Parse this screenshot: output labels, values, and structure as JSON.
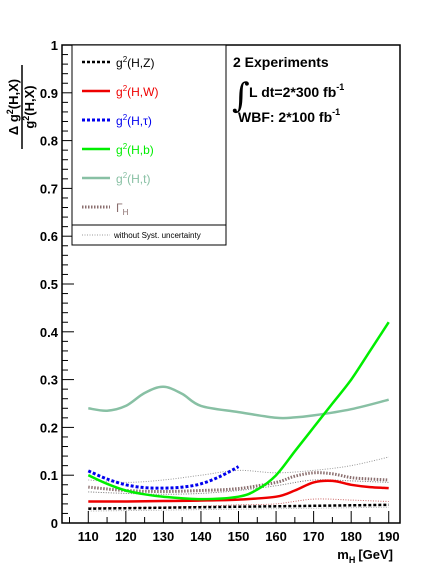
{
  "chart_data": {
    "type": "line",
    "xlim": [
      103,
      193
    ],
    "ylim": [
      0,
      1
    ],
    "x_ticks": [
      110,
      120,
      130,
      140,
      150,
      160,
      170,
      180,
      190
    ],
    "y_ticks": [
      0,
      0.1,
      0.2,
      0.3,
      0.4,
      0.5,
      0.6,
      0.7,
      0.8,
      0.9,
      1
    ],
    "xlabel_main": "m",
    "xlabel_sub": "H",
    "xlabel_unit": "[GeV]",
    "ylabel_num_prefix": "Δ g",
    "ylabel_num_rest": "(H,X)",
    "ylabel_den_prefix": "g",
    "ylabel_den_rest": "(H,X)",
    "ylabel_sup": "2",
    "legend": {
      "placement": "top-left",
      "note": "without Syst. uncertainty"
    },
    "series": [
      {
        "key": "HZ",
        "label_base": "g",
        "label_sup": "2",
        "label_rest": "(H,Z)",
        "color": "#000000",
        "dash": "3,2",
        "width": 2.5,
        "x": [
          110,
          120,
          130,
          140,
          150,
          160,
          170,
          180,
          190
        ],
        "y": [
          0.03,
          0.031,
          0.032,
          0.033,
          0.034,
          0.035,
          0.036,
          0.037,
          0.038
        ]
      },
      {
        "key": "HW",
        "label_base": "g",
        "label_sup": "2",
        "label_rest": "(H,W)",
        "color": "#ee0000",
        "dash": "",
        "width": 2.5,
        "x": [
          110,
          120,
          130,
          140,
          150,
          160,
          165,
          170,
          175,
          180,
          185,
          190
        ],
        "y": [
          0.045,
          0.045,
          0.046,
          0.047,
          0.049,
          0.055,
          0.068,
          0.085,
          0.088,
          0.08,
          0.075,
          0.073
        ]
      },
      {
        "key": "Htau",
        "label_base": "g",
        "label_sup": "2",
        "label_rest": "(H,τ)",
        "color": "#0000ee",
        "dash": "3,2",
        "width": 3,
        "x": [
          110,
          115,
          120,
          125,
          130,
          135,
          140,
          145,
          150
        ],
        "y": [
          0.109,
          0.092,
          0.08,
          0.074,
          0.073,
          0.075,
          0.082,
          0.097,
          0.118
        ]
      },
      {
        "key": "Hb",
        "label_base": "g",
        "label_sup": "2",
        "label_rest": "(H,b)",
        "color": "#00ee00",
        "dash": "",
        "width": 2.5,
        "x": [
          110,
          115,
          120,
          125,
          130,
          140,
          150,
          155,
          160,
          165,
          170,
          175,
          180,
          185,
          190
        ],
        "y": [
          0.1,
          0.082,
          0.068,
          0.06,
          0.055,
          0.05,
          0.055,
          0.07,
          0.1,
          0.15,
          0.2,
          0.25,
          0.3,
          0.36,
          0.42
        ]
      },
      {
        "key": "Htop",
        "label_base": "g",
        "label_sup": "2",
        "label_rest": "(H,t)",
        "color": "#88c0a4",
        "dash": "",
        "width": 2.5,
        "x": [
          110,
          115,
          120,
          125,
          130,
          135,
          140,
          150,
          160,
          165,
          170,
          180,
          190
        ],
        "y": [
          0.24,
          0.235,
          0.245,
          0.272,
          0.285,
          0.27,
          0.245,
          0.232,
          0.22,
          0.221,
          0.225,
          0.238,
          0.258
        ]
      },
      {
        "key": "Gamma",
        "label_base": "Γ",
        "label_sup": "",
        "label_sub": "H",
        "label_rest": "",
        "color": "#8a6e6e",
        "dash": "1.5,1.5",
        "width": 3,
        "x": [
          110,
          120,
          130,
          140,
          150,
          160,
          165,
          170,
          175,
          180,
          185,
          190
        ],
        "y": [
          0.075,
          0.068,
          0.066,
          0.068,
          0.072,
          0.085,
          0.098,
          0.105,
          0.103,
          0.095,
          0.092,
          0.09
        ]
      }
    ],
    "nosyst_series": [
      {
        "color": "#999999",
        "x": [
          110,
          120,
          130,
          140,
          150,
          160,
          170,
          180,
          190
        ],
        "y": [
          0.09,
          0.085,
          0.09,
          0.1,
          0.11,
          0.105,
          0.11,
          0.12,
          0.138
        ]
      },
      {
        "color": "#cc6666",
        "x": [
          110,
          120,
          130,
          140,
          150,
          160,
          170,
          180,
          190
        ],
        "y": [
          0.032,
          0.032,
          0.033,
          0.035,
          0.038,
          0.04,
          0.05,
          0.048,
          0.045
        ]
      },
      {
        "color": "#777777",
        "x": [
          110,
          120,
          130,
          140,
          150,
          160,
          170,
          180,
          190
        ],
        "y": [
          0.065,
          0.062,
          0.06,
          0.062,
          0.068,
          0.078,
          0.09,
          0.088,
          0.085
        ]
      },
      {
        "color": "#aaaaaa",
        "x": [
          110,
          120,
          130,
          140,
          150,
          160,
          170,
          180,
          190
        ],
        "y": [
          0.025,
          0.026,
          0.027,
          0.028,
          0.029,
          0.03,
          0.031,
          0.032,
          0.033
        ]
      }
    ]
  },
  "experiments": {
    "line1": "2 Experiments",
    "line2_prefix": "L dt=2*300 fb",
    "line2_sup": "-1",
    "line3_prefix": "WBF: 2*100 fb",
    "line3_sup": "-1"
  }
}
